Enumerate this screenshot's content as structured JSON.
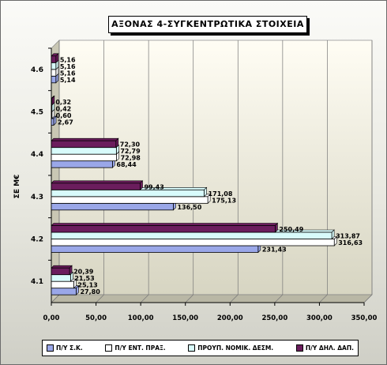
{
  "chart_data": {
    "type": "bar",
    "orientation": "horizontal",
    "title": "ΑΞΟΝΑΣ 4-ΣΥΓΚΕΝΤΡΩΤΙΚΑ ΣΤΟΙΧΕΙΑ",
    "ylabel": "ΣΕ Μ€",
    "xlabel": "",
    "categories": [
      "4.1",
      "4.2",
      "4.3",
      "4.4",
      "4.5",
      "4.6"
    ],
    "xlim": [
      0,
      350
    ],
    "xticks": [
      "0,00",
      "50,00",
      "100,00",
      "150,00",
      "200,00",
      "250,00",
      "300,00",
      "350,00"
    ],
    "grid": true,
    "legend_position": "bottom",
    "series": [
      {
        "name": "Π/Υ Σ.Κ.",
        "color": "#9aa7e8",
        "values": [
          27.8,
          231.43,
          136.5,
          68.44,
          2.67,
          5.14
        ],
        "labels": [
          "27,80",
          "231,43",
          "136,50",
          "68,44",
          "2,67",
          "5,14"
        ]
      },
      {
        "name": "Π/Υ ΕΝΤ. ΠΡΑΞ.",
        "color": "#ffffff",
        "values": [
          25.13,
          316.63,
          175.13,
          72.98,
          0.6,
          5.16
        ],
        "labels": [
          "25,13",
          "316,63",
          "175,13",
          "72,98",
          "0,60",
          "5,16"
        ]
      },
      {
        "name": "ΠΡΟΥΠ. ΝΟΜΙΚ. ΔΕΣΜ.",
        "color": "#d8fbfb",
        "values": [
          21.53,
          313.87,
          171.08,
          72.79,
          0.42,
          5.16
        ],
        "labels": [
          "21,53",
          "313,87",
          "171,08",
          "72,79",
          "0,42",
          "5,16"
        ]
      },
      {
        "name": "Π/Υ ΔΗΛ. ΔΑΠ.",
        "color": "#6b1d5d",
        "values": [
          20.39,
          250.49,
          99.43,
          72.3,
          0.32,
          5.16
        ],
        "labels": [
          "20,39",
          "250,49",
          "99,43",
          "72,30",
          "0,32",
          "5,16"
        ]
      }
    ]
  }
}
